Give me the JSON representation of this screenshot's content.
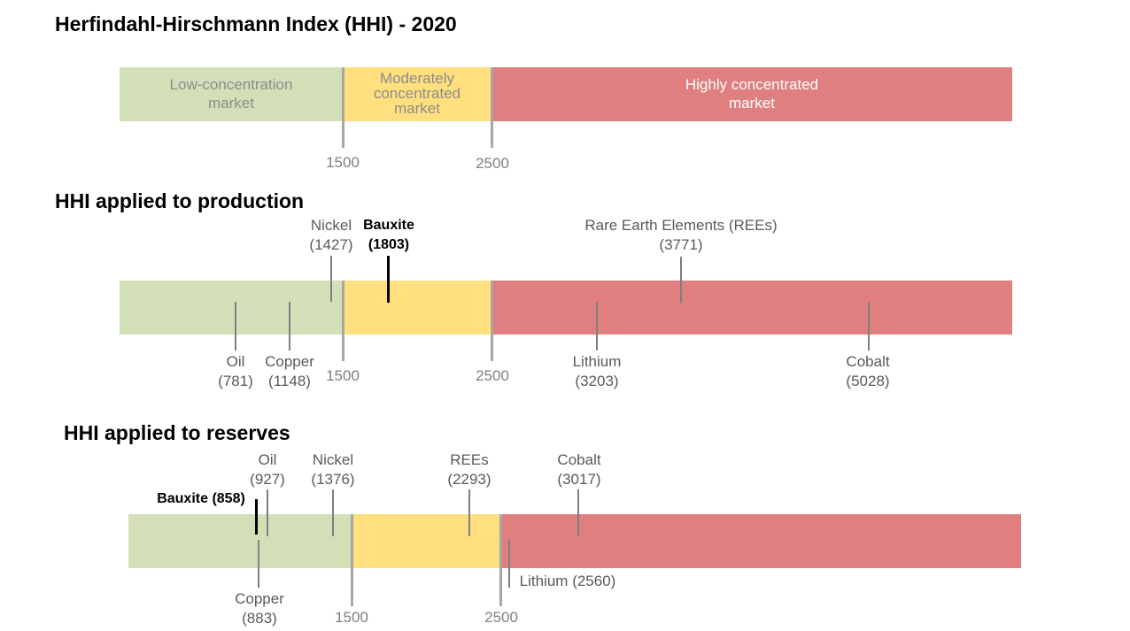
{
  "colors": {
    "low": "#d3e0b7",
    "moderate": "#ffdf7e",
    "high": "#e07f7f"
  },
  "section1": {
    "title": "Herfindahl-Hirschmann Index (HHI) - 2020",
    "bands": {
      "low": "Low-concentration market",
      "moderate": "Moderately concentrated market",
      "high": "Highly concentrated market"
    },
    "thresholds": [
      "1500",
      "2500"
    ]
  },
  "section2": {
    "title": "HHI applied to production",
    "thresholds": [
      "1500",
      "2500"
    ],
    "markers": [
      {
        "name": "Oil",
        "value": "(781)"
      },
      {
        "name": "Copper",
        "value": "(1148)"
      },
      {
        "name": "Nickel",
        "value": "(1427)"
      },
      {
        "name": "Bauxite",
        "value": "(1803)"
      },
      {
        "name": "Lithium",
        "value": "(3203)"
      },
      {
        "name": "Rare Earth Elements (REEs)",
        "value": "(3771)"
      },
      {
        "name": "Cobalt",
        "value": "(5028)"
      }
    ]
  },
  "section3": {
    "title": "HHI applied to reserves",
    "thresholds": [
      "1500",
      "2500"
    ],
    "markers": [
      {
        "name": "Bauxite (858)"
      },
      {
        "name": "Oil",
        "value": "(927)"
      },
      {
        "name": "Copper",
        "value": "(883)"
      },
      {
        "name": "Nickel",
        "value": "(1376)"
      },
      {
        "name": "REEs",
        "value": "(2293)"
      },
      {
        "name": "Lithium (2560)"
      },
      {
        "name": "Cobalt",
        "value": "(3017)"
      }
    ]
  }
}
